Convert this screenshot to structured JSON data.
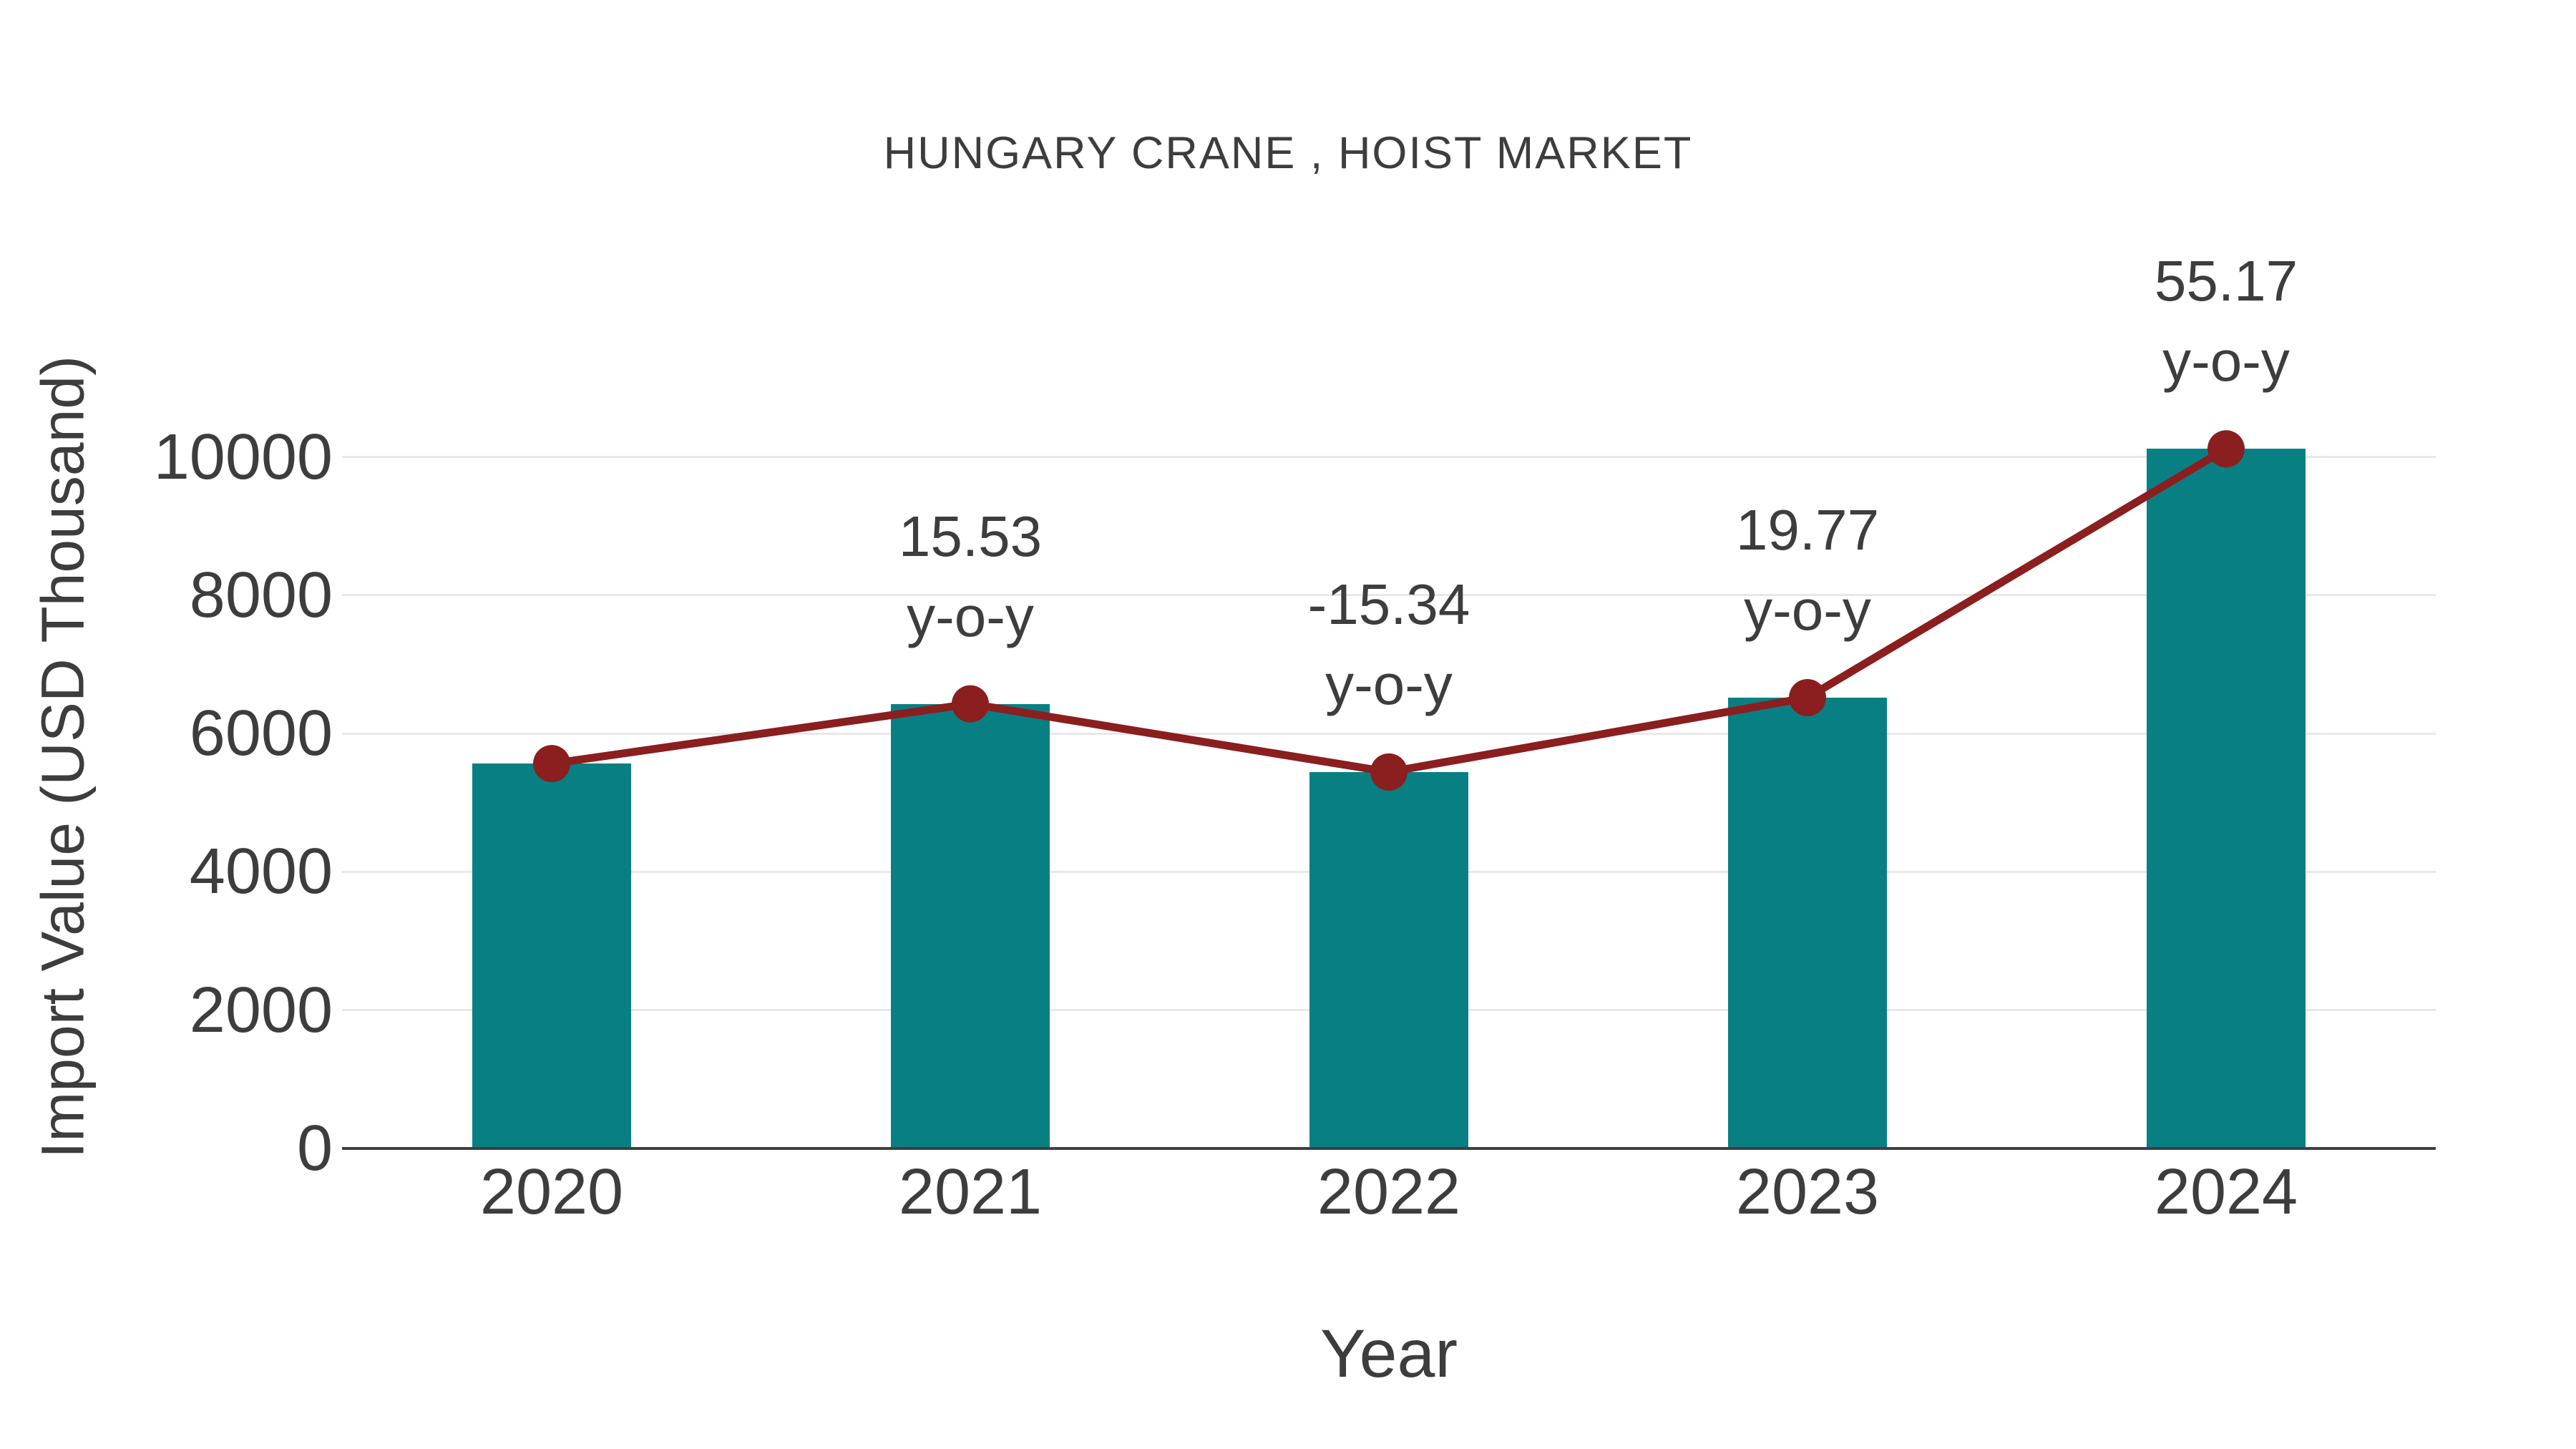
{
  "title": "HUNGARY CRANE , HOIST MARKET",
  "axes": {
    "x": {
      "title": "Year",
      "ticks": [
        "2020",
        "2021",
        "2022",
        "2023",
        "2024"
      ]
    },
    "y": {
      "title": "Import Value (USD Thousand)",
      "ticks": [
        0,
        2000,
        4000,
        6000,
        8000,
        10000
      ]
    }
  },
  "colors": {
    "bar": "#088083",
    "line": "#8b1e1e",
    "text": "#3d3d3d",
    "grid": "#e8e8e8",
    "axis": "#3f3f3f",
    "background": "#ffffff"
  },
  "chart_data": {
    "type": "bar",
    "title": "HUNGARY CRANE , HOIST MARKET",
    "xlabel": "Year",
    "ylabel": "Import Value (USD Thousand)",
    "categories": [
      "2020",
      "2021",
      "2022",
      "2023",
      "2024"
    ],
    "series": [
      {
        "name": "Import Value (USD Thousand)",
        "type": "bar",
        "color": "#088083",
        "values": [
          5565,
          6429,
          5443,
          6519,
          10116
        ]
      },
      {
        "name": "y-o-y change marker line",
        "type": "line",
        "color": "#8b1e1e",
        "markers": true,
        "values": [
          5565,
          6429,
          5443,
          6519,
          10116
        ]
      }
    ],
    "annotations": [
      {
        "category": "2021",
        "lines": [
          "15.53",
          "y-o-y"
        ],
        "value": 15.53
      },
      {
        "category": "2022",
        "lines": [
          "-15.34",
          "y-o-y"
        ],
        "value": -15.34
      },
      {
        "category": "2023",
        "lines": [
          "19.77",
          "y-o-y"
        ],
        "value": 19.77
      },
      {
        "category": "2024",
        "lines": [
          "55.17",
          "y-o-y"
        ],
        "value": 55.17
      }
    ],
    "ylim": [
      0,
      11000
    ],
    "grid": true,
    "legend": false
  }
}
